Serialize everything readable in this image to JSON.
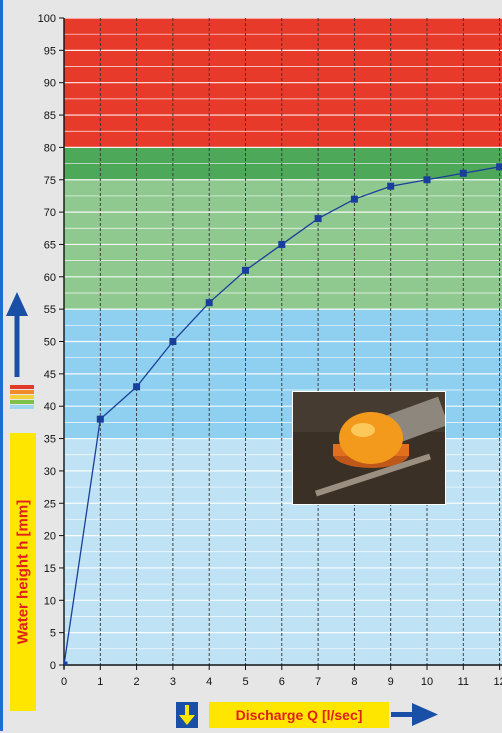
{
  "chart_data": {
    "type": "line",
    "xlabel": "Discharge Q [l/sec]",
    "ylabel": "Water height h [mm]",
    "xlim": [
      0,
      12
    ],
    "ylim": [
      0,
      100
    ],
    "x_ticks": [
      0,
      1,
      2,
      3,
      4,
      5,
      6,
      7,
      8,
      9,
      10,
      11,
      12
    ],
    "y_ticks": [
      0,
      5,
      10,
      15,
      20,
      25,
      30,
      35,
      40,
      45,
      50,
      55,
      60,
      65,
      70,
      75,
      80,
      85,
      90,
      95,
      100
    ],
    "series": [
      {
        "x": [
          0,
          1,
          2,
          3,
          4,
          5,
          6,
          7,
          8,
          9,
          10,
          11,
          12
        ],
        "y": [
          0,
          38,
          43,
          50,
          56,
          61,
          65,
          69,
          72,
          74,
          75,
          76,
          77
        ],
        "color": "#1a3f9a",
        "marker": "square"
      }
    ],
    "bands": [
      {
        "from": 0,
        "to": 35,
        "color": "#bfe3f5"
      },
      {
        "from": 35,
        "to": 55,
        "color": "#8fd0f0"
      },
      {
        "from": 55,
        "to": 75,
        "color": "#8fc98f"
      },
      {
        "from": 75,
        "to": 80,
        "color": "#4ea85a"
      },
      {
        "from": 80,
        "to": 100,
        "color": "#e83a2a"
      }
    ],
    "grid": true
  },
  "legend_stripes": [
    "#e23a2a",
    "#f08a2a",
    "#f2d23a",
    "#7ec24a",
    "#9ed6ee"
  ],
  "colors": {
    "arrow": "#1a4fa8",
    "label_bg": "#ffe600",
    "label_text": "#e0201a"
  },
  "photo": {
    "subject": "orange float device in water channel"
  }
}
